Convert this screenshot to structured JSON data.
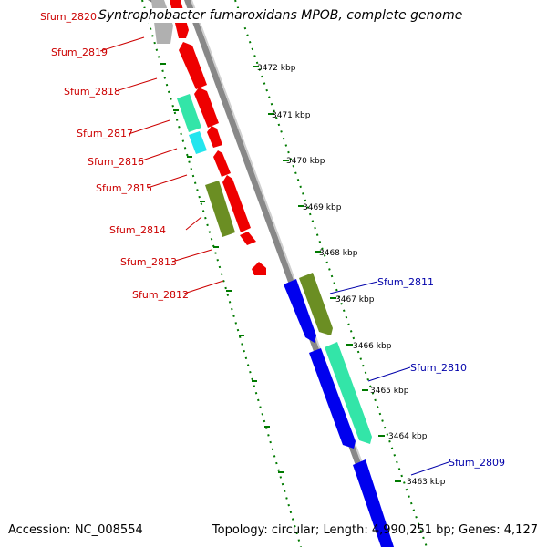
{
  "title": "Syntrophobacter fumaroxidans MPOB, complete genome",
  "footer": {
    "accession": "Accession: NC_008554",
    "summary": "Topology: circular; Length: 4,990,251 bp; Genes: 4,127"
  },
  "colors": {
    "backbone": "#888888",
    "tick": "#007a00",
    "red": "#ee0000",
    "blue": "#0000ee",
    "olive": "#6b8e23",
    "aquamarine": "#33e5a8",
    "cyan": "#22e5ee",
    "grey": "#b0b0b0",
    "left_label": "#cc0000",
    "right_label": "#0000aa"
  },
  "kbp_labels": [
    "3472 kbp",
    "3471 kbp",
    "3470 kbp",
    "3469 kbp",
    "3468 kbp",
    "3467 kbp",
    "3466 kbp",
    "3465 kbp",
    "3464 kbp",
    "3463 kbp"
  ],
  "left_genes": [
    "Sfum_2820",
    "Sfum_2819",
    "Sfum_2818",
    "Sfum_2817",
    "Sfum_2816",
    "Sfum_2815",
    "Sfum_2814",
    "Sfum_2813",
    "Sfum_2812"
  ],
  "right_genes": [
    "Sfum_2811",
    "Sfum_2810",
    "Sfum_2809"
  ]
}
